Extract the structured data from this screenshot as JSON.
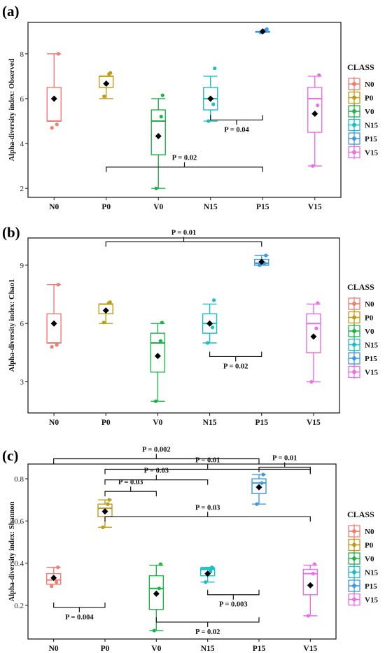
{
  "legend_title": "CLASS",
  "groups": [
    "N0",
    "P0",
    "V0",
    "N15",
    "P15",
    "V15"
  ],
  "colors": {
    "N0": "#F07C73",
    "P0": "#BE9C1A",
    "V0": "#1FB24A",
    "N15": "#19BFC4",
    "P15": "#3C9BE6",
    "V15": "#EB6FE6"
  },
  "chart_data": [
    {
      "type": "box",
      "panel_label": "(a)",
      "ylabel": "Alpha-diversity index: Observed",
      "ylim": [
        1.6,
        9.4
      ],
      "yticks": [
        2,
        4,
        6,
        8
      ],
      "categories": [
        "N0",
        "P0",
        "V0",
        "N15",
        "P15",
        "V15"
      ],
      "boxes": [
        {
          "min": 5,
          "q1": 5,
          "median": 5,
          "q3": 6.5,
          "max": 8,
          "mean": 6,
          "points": [
            4.7,
            4.85,
            8
          ]
        },
        {
          "min": 6,
          "q1": 6.5,
          "median": 7,
          "q3": 7,
          "max": 7,
          "mean": 6.67,
          "points": [
            6.1,
            7.1,
            7.15
          ]
        },
        {
          "min": 2,
          "q1": 3.5,
          "median": 5,
          "q3": 5.5,
          "max": 6,
          "mean": 4.33,
          "points": [
            2,
            5.2,
            6.15
          ]
        },
        {
          "min": 5,
          "q1": 5.5,
          "median": 6,
          "q3": 6.5,
          "max": 7,
          "mean": 6,
          "points": [
            5,
            5.75,
            7.35
          ]
        },
        {
          "min": 9,
          "q1": 9,
          "median": 9,
          "q3": 9,
          "max": 9,
          "mean": 9,
          "points": [
            8.95,
            9.05,
            9.1
          ]
        },
        {
          "min": 3,
          "q1": 4.5,
          "median": 6,
          "q3": 6.5,
          "max": 7,
          "mean": 5.33,
          "points": [
            3,
            5.7,
            7.05
          ]
        }
      ],
      "brackets": [
        {
          "from": "N15",
          "to": "P15",
          "y": 5.05,
          "dir": "up",
          "label": "P = 0.04"
        },
        {
          "from": "P0",
          "to": "P15",
          "y": 2.95,
          "dir": "down",
          "label": "P = 0.02"
        }
      ]
    },
    {
      "type": "box",
      "panel_label": "(b)",
      "ylabel": "Alpha-diversity index: Chao1",
      "ylim": [
        1.4,
        10.4
      ],
      "yticks": [
        3,
        6,
        9
      ],
      "categories": [
        "N0",
        "P0",
        "V0",
        "N15",
        "P15",
        "V15"
      ],
      "boxes": [
        {
          "min": 5,
          "q1": 5,
          "median": 5,
          "q3": 6.5,
          "max": 8,
          "mean": 6,
          "points": [
            4.8,
            4.9,
            8
          ]
        },
        {
          "min": 6,
          "q1": 6.5,
          "median": 7,
          "q3": 7,
          "max": 7,
          "mean": 6.67,
          "points": [
            6.05,
            7.05,
            7.1
          ]
        },
        {
          "min": 2,
          "q1": 3.5,
          "median": 5,
          "q3": 5.5,
          "max": 6,
          "mean": 4.33,
          "points": [
            2,
            5.1,
            6.05
          ]
        },
        {
          "min": 5,
          "q1": 5.5,
          "median": 6,
          "q3": 6.5,
          "max": 7,
          "mean": 6,
          "points": [
            5,
            5.8,
            7.2
          ]
        },
        {
          "min": 9,
          "q1": 9,
          "median": 9.1,
          "q3": 9.3,
          "max": 9.5,
          "mean": 9.17,
          "points": [
            9.0,
            9.1,
            9.5
          ]
        },
        {
          "min": 3,
          "q1": 4.5,
          "median": 6,
          "q3": 6.5,
          "max": 7,
          "mean": 5.33,
          "points": [
            3,
            5.75,
            7.05
          ]
        }
      ],
      "brackets": [
        {
          "from": "P0",
          "to": "P15",
          "y": 10.2,
          "dir": "down",
          "label": "P = 0.01"
        },
        {
          "from": "N15",
          "to": "P15",
          "y": 4.3,
          "dir": "up",
          "label": "P = 0.02"
        }
      ]
    },
    {
      "type": "box",
      "panel_label": "(c)",
      "ylabel": "Alpha-diversity index: Shannon",
      "ylim": [
        0.04,
        0.87
      ],
      "yticks": [
        0.2,
        0.4,
        0.6,
        0.8
      ],
      "categories": [
        "N0",
        "P0",
        "V0",
        "N15",
        "P15",
        "V15"
      ],
      "boxes": [
        {
          "min": 0.3,
          "q1": 0.3,
          "median": 0.32,
          "q3": 0.35,
          "max": 0.38,
          "mean": 0.33,
          "points": [
            0.29,
            0.31,
            0.38
          ]
        },
        {
          "min": 0.57,
          "q1": 0.62,
          "median": 0.66,
          "q3": 0.68,
          "max": 0.7,
          "mean": 0.645,
          "points": [
            0.57,
            0.68,
            0.7
          ]
        },
        {
          "min": 0.08,
          "q1": 0.18,
          "median": 0.28,
          "q3": 0.34,
          "max": 0.39,
          "mean": 0.255,
          "points": [
            0.08,
            0.28,
            0.395
          ]
        },
        {
          "min": 0.31,
          "q1": 0.34,
          "median": 0.37,
          "q3": 0.375,
          "max": 0.38,
          "mean": 0.35,
          "points": [
            0.31,
            0.36,
            0.38
          ]
        },
        {
          "min": 0.68,
          "q1": 0.73,
          "median": 0.78,
          "q3": 0.8,
          "max": 0.82,
          "mean": 0.76,
          "points": [
            0.68,
            0.78,
            0.82
          ]
        },
        {
          "min": 0.15,
          "q1": 0.25,
          "median": 0.35,
          "q3": 0.37,
          "max": 0.39,
          "mean": 0.295,
          "points": [
            0.15,
            0.35,
            0.395
          ]
        }
      ],
      "brackets": [
        {
          "from": "N0",
          "to": "P15",
          "y": 0.895,
          "dir": "down",
          "label": "P = 0.002"
        },
        {
          "from": "P15",
          "to": "V15",
          "y": 0.855,
          "dir": "down",
          "label": "P = 0.01"
        },
        {
          "from": "P0",
          "to": "V15",
          "y": 0.845,
          "dir": "down",
          "label": "P = 0.01"
        },
        {
          "from": "P0",
          "to": "N15",
          "y": 0.795,
          "dir": "down",
          "label": "P = 0.03"
        },
        {
          "from": "P0",
          "to": "V0",
          "y": 0.74,
          "dir": "down",
          "label": "P = 0.03"
        },
        {
          "from": "P0",
          "to": "V15",
          "y": 0.62,
          "dir": "down",
          "label": "P = 0.03"
        },
        {
          "from": "N0",
          "to": "P0",
          "y": 0.19,
          "dir": "up",
          "label": "P = 0.004"
        },
        {
          "from": "N15",
          "to": "P15",
          "y": 0.25,
          "dir": "up",
          "label": "P = 0.003"
        },
        {
          "from": "V0",
          "to": "P15",
          "y": 0.12,
          "dir": "up",
          "label": "P = 0.02"
        }
      ]
    }
  ]
}
